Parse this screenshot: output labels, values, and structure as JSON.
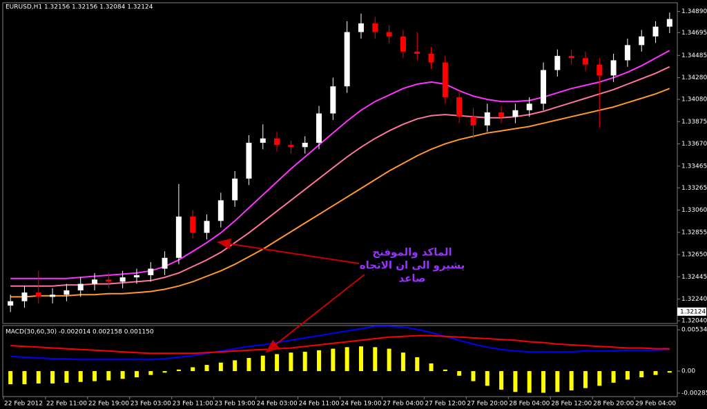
{
  "chart_data": [
    {
      "type": "candlestick",
      "title": "EURUSD,H1  1.32156 1.32156 1.32084 1.32124",
      "categories": [
        "22 Feb 2012",
        null,
        null,
        "22 Feb 11:00",
        null,
        null,
        "22 Feb 19:00",
        null,
        null,
        "23 Feb 03:00",
        null,
        null,
        "23 Feb 11:00",
        null,
        null,
        "23 Feb 19:00",
        null,
        null,
        "24 Feb 03:00",
        null,
        null,
        "24 Feb 11:00",
        null,
        null,
        "24 Feb 19:00",
        null,
        null,
        "27 Feb 04:00",
        null,
        null,
        "27 Feb 12:00",
        null,
        null,
        "27 Feb 20:00",
        null,
        null,
        "28 Feb 04:00",
        null,
        null,
        "28 Feb 12:00",
        null,
        null,
        "28 Feb 20:00",
        null,
        null,
        "29 Feb 04:00",
        null,
        null
      ],
      "open": [
        1.3218,
        1.3222,
        1.323,
        1.3226,
        1.3228,
        1.3232,
        1.3238,
        1.3242,
        1.324,
        1.3244,
        1.3246,
        1.3252,
        1.3262,
        1.33,
        1.3285,
        1.3296,
        1.3315,
        1.3335,
        1.3368,
        1.3372,
        1.3366,
        1.3364,
        1.3368,
        1.3395,
        1.342,
        1.347,
        1.3478,
        1.347,
        1.3466,
        1.3452,
        1.345,
        1.3442,
        1.341,
        1.3392,
        1.3384,
        1.3396,
        1.3392,
        1.3398,
        1.3404,
        1.3435,
        1.3448,
        1.3446,
        1.344,
        1.343,
        1.3444,
        1.3458,
        1.3466,
        1.3475
      ],
      "high": [
        1.3228,
        1.3236,
        1.325,
        1.3234,
        1.3238,
        1.3244,
        1.3248,
        1.3248,
        1.325,
        1.3252,
        1.3258,
        1.3268,
        1.333,
        1.3306,
        1.3302,
        1.3322,
        1.3342,
        1.3375,
        1.3385,
        1.3378,
        1.337,
        1.3374,
        1.3402,
        1.3428,
        1.348,
        1.3487,
        1.3484,
        1.3476,
        1.3472,
        1.347,
        1.3456,
        1.3448,
        1.3416,
        1.34,
        1.3404,
        1.3402,
        1.3404,
        1.341,
        1.3442,
        1.3454,
        1.3454,
        1.3452,
        1.3446,
        1.345,
        1.3464,
        1.3472,
        1.348,
        1.3488
      ],
      "low": [
        1.3212,
        1.3216,
        1.322,
        1.322,
        1.3222,
        1.3226,
        1.3232,
        1.3234,
        1.3234,
        1.3238,
        1.324,
        1.3246,
        1.3256,
        1.328,
        1.3279,
        1.329,
        1.3309,
        1.3329,
        1.3362,
        1.336,
        1.3358,
        1.3358,
        1.3362,
        1.3389,
        1.3414,
        1.3464,
        1.3464,
        1.346,
        1.3446,
        1.3444,
        1.3436,
        1.3404,
        1.3386,
        1.3372,
        1.3378,
        1.3386,
        1.3386,
        1.3392,
        1.3398,
        1.3429,
        1.344,
        1.3434,
        1.3382,
        1.3424,
        1.3438,
        1.3452,
        1.346,
        1.3469
      ],
      "close": [
        1.3222,
        1.323,
        1.3226,
        1.3228,
        1.3232,
        1.3238,
        1.3242,
        1.324,
        1.3244,
        1.3246,
        1.3252,
        1.3262,
        1.33,
        1.3285,
        1.3296,
        1.3315,
        1.3335,
        1.3368,
        1.3372,
        1.3366,
        1.3364,
        1.3368,
        1.3395,
        1.342,
        1.347,
        1.3478,
        1.347,
        1.3466,
        1.3452,
        1.345,
        1.3442,
        1.341,
        1.3392,
        1.3384,
        1.3396,
        1.3392,
        1.3398,
        1.3404,
        1.3435,
        1.3448,
        1.3446,
        1.344,
        1.343,
        1.3444,
        1.3458,
        1.3466,
        1.3475,
        1.3482
      ],
      "up_color": "#ffffff",
      "down_color": "#ff0000",
      "series": [
        {
          "color": "#ff33ff",
          "values": [
            1.3243,
            1.3243,
            1.3243,
            1.3243,
            1.3243,
            1.3244,
            1.3245,
            1.3246,
            1.3247,
            1.3248,
            1.325,
            1.3254,
            1.326,
            1.3268,
            1.3276,
            1.3285,
            1.3296,
            1.3308,
            1.332,
            1.3332,
            1.3344,
            1.3355,
            1.3366,
            1.3377,
            1.3388,
            1.3398,
            1.3406,
            1.3412,
            1.3418,
            1.3422,
            1.3424,
            1.3422,
            1.3416,
            1.3411,
            1.3408,
            1.3406,
            1.3406,
            1.3407,
            1.341,
            1.3414,
            1.3418,
            1.3421,
            1.3424,
            1.3428,
            1.3433,
            1.3439,
            1.3446,
            1.3453
          ]
        },
        {
          "color": "#ff7799",
          "values": [
            1.3236,
            1.3236,
            1.3236,
            1.3236,
            1.3237,
            1.3237,
            1.3238,
            1.3238,
            1.3239,
            1.324,
            1.3241,
            1.3244,
            1.3248,
            1.3254,
            1.326,
            1.3267,
            1.3276,
            1.3285,
            1.3295,
            1.3305,
            1.3315,
            1.3325,
            1.3335,
            1.3345,
            1.3355,
            1.3364,
            1.3372,
            1.3379,
            1.3385,
            1.339,
            1.3393,
            1.3394,
            1.3393,
            1.3392,
            1.3391,
            1.3391,
            1.3392,
            1.3394,
            1.3397,
            1.3401,
            1.3405,
            1.3409,
            1.3413,
            1.3417,
            1.3422,
            1.3427,
            1.3432,
            1.3438
          ]
        },
        {
          "color": "#ff9933",
          "values": [
            1.3226,
            1.3226,
            1.3227,
            1.3227,
            1.3227,
            1.3228,
            1.3228,
            1.3229,
            1.3229,
            1.323,
            1.3231,
            1.3233,
            1.3236,
            1.324,
            1.3245,
            1.325,
            1.3256,
            1.3263,
            1.327,
            1.3278,
            1.3286,
            1.3294,
            1.3302,
            1.331,
            1.3318,
            1.3326,
            1.3334,
            1.3342,
            1.3349,
            1.3356,
            1.3362,
            1.3367,
            1.3371,
            1.3374,
            1.3377,
            1.3379,
            1.3381,
            1.3383,
            1.3386,
            1.3389,
            1.3392,
            1.3395,
            1.3398,
            1.3401,
            1.3405,
            1.3409,
            1.3413,
            1.3418
          ]
        }
      ],
      "ylim": [
        1.32015,
        1.3497
      ],
      "yticks": [
        {
          "value": 1.3489,
          "label": "1.34890"
        },
        1.34695,
        1.34485,
        {
          "value": 1.3428,
          "label": "1.34280"
        },
        {
          "value": 1.3408,
          "label": "1.34080"
        },
        1.33875,
        {
          "value": 1.3367,
          "label": "1.33670"
        },
        1.33465,
        1.33265,
        {
          "value": 1.3306,
          "label": "1.33060"
        },
        1.32855,
        {
          "value": 1.3265,
          "label": "1.32650"
        },
        1.32445,
        {
          "value": 1.3224,
          "label": "1.32240"
        },
        {
          "value": 1.3204,
          "label": "1.32040"
        }
      ],
      "current_price": 1.32124,
      "annotation": [
        "الماكد والموفنج",
        "يشيرو الى ان الاتجاه",
        "صاعد"
      ],
      "annotation_color": "#9933ff"
    },
    {
      "type": "macd",
      "title": "MACD(30,60,30) -0.002014 0.002158 0.001150",
      "histogram": {
        "color": "#ffff00",
        "values": [
          -0.0017,
          -0.0017,
          -0.0016,
          -0.0016,
          -0.0015,
          -0.0014,
          -0.0013,
          -0.0012,
          -0.001,
          -0.0008,
          -0.0005,
          -0.0002,
          0.0002,
          0.0005,
          0.0008,
          0.0011,
          0.0014,
          0.0017,
          0.002,
          0.0022,
          0.0024,
          0.0025,
          0.0027,
          0.0029,
          0.0031,
          0.0032,
          0.0031,
          0.0029,
          0.0024,
          0.0018,
          0.001,
          0.0002,
          -0.0006,
          -0.0013,
          -0.0019,
          -0.0024,
          -0.0027,
          -0.0028,
          -0.0028,
          -0.0027,
          -0.0025,
          -0.0022,
          -0.0019,
          -0.0015,
          -0.0011,
          -0.0008,
          -0.0005,
          -0.0002
        ]
      },
      "series": [
        {
          "color": "#0000ff",
          "values": [
            0.0019,
            0.0018,
            0.0017,
            0.0016,
            0.0016,
            0.0015,
            0.0015,
            0.0015,
            0.0015,
            0.0015,
            0.0015,
            0.0016,
            0.0018,
            0.002,
            0.0023,
            0.0026,
            0.0029,
            0.0032,
            0.0034,
            0.0037,
            0.004,
            0.0043,
            0.0046,
            0.0049,
            0.0052,
            0.0055,
            0.0058,
            0.0058,
            0.0057,
            0.0054,
            0.005,
            0.0045,
            0.004,
            0.0035,
            0.0031,
            0.0028,
            0.0026,
            0.0025,
            0.0025,
            0.0025,
            0.0025,
            0.0026,
            0.0026,
            0.0026,
            0.0027,
            0.0027,
            0.0027,
            0.0028
          ]
        },
        {
          "color": "#ff0000",
          "values": [
            0.0033,
            0.0032,
            0.0031,
            0.003,
            0.0029,
            0.0028,
            0.0027,
            0.0026,
            0.0025,
            0.0024,
            0.0023,
            0.0023,
            0.0023,
            0.0023,
            0.0024,
            0.0025,
            0.0026,
            0.0027,
            0.0028,
            0.0029,
            0.003,
            0.0032,
            0.0034,
            0.0036,
            0.0038,
            0.004,
            0.0042,
            0.0044,
            0.0045,
            0.0046,
            0.0046,
            0.0045,
            0.0044,
            0.0043,
            0.0042,
            0.0041,
            0.004,
            0.0038,
            0.0037,
            0.0035,
            0.0034,
            0.0033,
            0.0032,
            0.0031,
            0.003,
            0.003,
            0.0029,
            0.0029
          ]
        }
      ],
      "ylim": [
        -0.0033,
        0.0059
      ],
      "yticks": [
        0.005343,
        {
          "value": 0,
          "label": "0.00"
        },
        -0.00285
      ]
    }
  ]
}
